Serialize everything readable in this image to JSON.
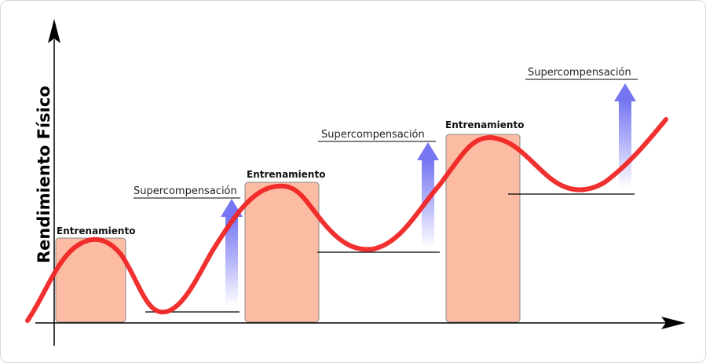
{
  "diagram": {
    "y_axis_label": "Rendimiento Físico",
    "training_label": "Entrenamiento",
    "supercomp_label": "Supercompensación",
    "colors": {
      "curve": "#f02525",
      "training_box": "#fbbca3",
      "training_border": "#8a8a8a",
      "arrow": "#6f6ff2",
      "axis": "#000000"
    }
  }
}
